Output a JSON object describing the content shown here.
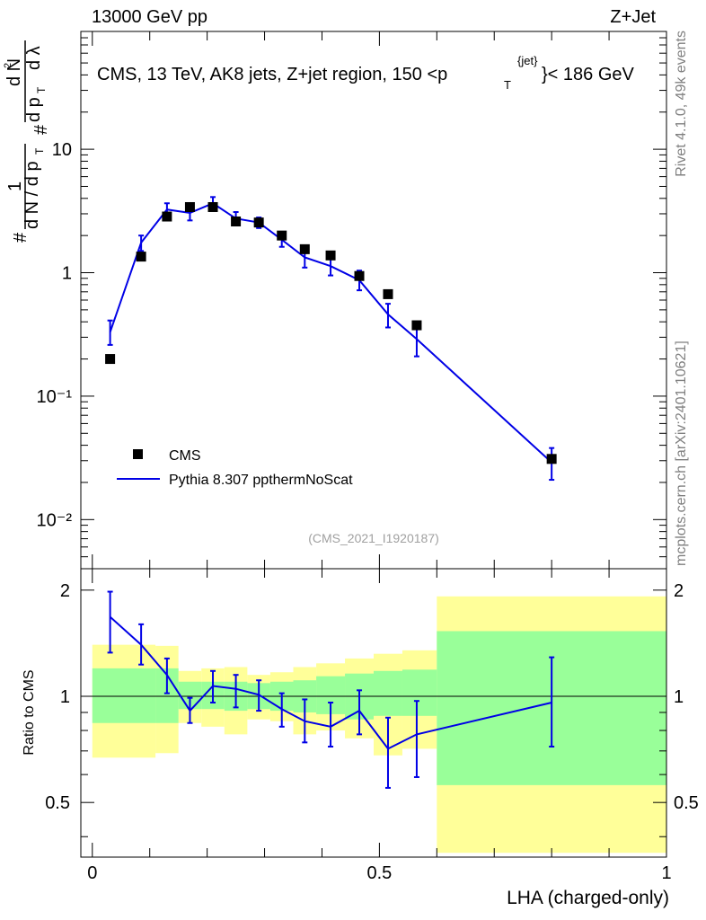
{
  "header": {
    "left": "13000 GeV pp",
    "right": "Z+Jet"
  },
  "side": {
    "rivet": "Rivet 4.1.0,  49k events",
    "mcplots": "mcplots.cern.ch [arXiv:2401.10621]"
  },
  "colors": {
    "cms": "#000000",
    "mc": "#0000e6",
    "band_inner": "#99ff99",
    "band_outer": "#ffff99"
  },
  "chart_data": [
    {
      "type": "scatter",
      "title": "CMS, 13 TeV, AK8 jets, Z+jet region, 150 <p_T^{jet}< 186 GeV",
      "title_text": "CMS, 13 TeV, AK8 jets, Z+jet region, 150 <p",
      "title_sub": "T",
      "title_sup": "{jet}",
      "title_suffix": "}< 186 GeV",
      "analysis_id": "(CMS_2021_I1920187)",
      "ylabel": "1/N dN/dp_T d^2N/dp_T dλ",
      "yscale": "log",
      "ylim": [
        0.004,
        90
      ],
      "xlim": [
        -0.02,
        1.0
      ],
      "ytick_labels": [
        "10⁻²",
        "10⁻¹",
        "1",
        "10"
      ],
      "legend": [
        "CMS",
        "Pythia 8.307 ppthermNoScat"
      ],
      "series": [
        {
          "name": "CMS",
          "x": [
            0.031,
            0.085,
            0.13,
            0.17,
            0.21,
            0.25,
            0.29,
            0.33,
            0.37,
            0.415,
            0.465,
            0.515,
            0.565,
            0.8
          ],
          "y": [
            0.2,
            1.35,
            2.85,
            3.4,
            3.4,
            2.6,
            2.55,
            2.0,
            1.55,
            1.38,
            0.94,
            0.67,
            0.375,
            0.031
          ]
        },
        {
          "name": "Pythia 8.307 ppthermNoScat",
          "x": [
            0.031,
            0.085,
            0.13,
            0.17,
            0.21,
            0.25,
            0.29,
            0.33,
            0.37,
            0.415,
            0.465,
            0.515,
            0.565,
            0.8
          ],
          "y": [
            0.33,
            1.75,
            3.25,
            3.05,
            3.65,
            2.75,
            2.55,
            1.85,
            1.33,
            1.13,
            0.87,
            0.46,
            0.29,
            0.029
          ],
          "err_lo": [
            0.26,
            1.5,
            2.8,
            2.65,
            3.2,
            2.45,
            2.3,
            1.62,
            1.1,
            0.95,
            0.72,
            0.36,
            0.21,
            0.021
          ],
          "err_hi": [
            0.41,
            2.0,
            3.65,
            3.5,
            4.1,
            3.1,
            2.8,
            2.1,
            1.55,
            1.35,
            1.04,
            0.56,
            0.38,
            0.038
          ]
        }
      ]
    },
    {
      "type": "line",
      "ylabel": "Ratio to CMS",
      "xlabel": "LHA (charged-only)",
      "ylim": [
        0.35,
        2.3
      ],
      "xlim": [
        -0.02,
        1.0
      ],
      "ytick_labels": [
        "0.5",
        "1",
        "2"
      ],
      "xtick_labels": [
        "0",
        "0.5",
        "1"
      ],
      "reference": 1.0,
      "bands": [
        {
          "x0": 0.0,
          "x1": 0.11,
          "inner": [
            0.84,
            1.2
          ],
          "outer": [
            0.67,
            1.4
          ]
        },
        {
          "x0": 0.11,
          "x1": 0.15,
          "inner": [
            0.84,
            1.2
          ],
          "outer": [
            0.69,
            1.39
          ]
        },
        {
          "x0": 0.15,
          "x1": 0.19,
          "inner": [
            0.92,
            1.1
          ],
          "outer": [
            0.84,
            1.18
          ]
        },
        {
          "x0": 0.19,
          "x1": 0.23,
          "inner": [
            0.92,
            1.1
          ],
          "outer": [
            0.82,
            1.2
          ]
        },
        {
          "x0": 0.23,
          "x1": 0.27,
          "inner": [
            0.91,
            1.1
          ],
          "outer": [
            0.78,
            1.21
          ]
        },
        {
          "x0": 0.27,
          "x1": 0.31,
          "inner": [
            0.92,
            1.09
          ],
          "outer": [
            0.86,
            1.15
          ]
        },
        {
          "x0": 0.31,
          "x1": 0.35,
          "inner": [
            0.91,
            1.1
          ],
          "outer": [
            0.85,
            1.17
          ]
        },
        {
          "x0": 0.35,
          "x1": 0.39,
          "inner": [
            0.9,
            1.11
          ],
          "outer": [
            0.78,
            1.21
          ]
        },
        {
          "x0": 0.39,
          "x1": 0.44,
          "inner": [
            0.89,
            1.14
          ],
          "outer": [
            0.8,
            1.24
          ]
        },
        {
          "x0": 0.44,
          "x1": 0.49,
          "inner": [
            0.86,
            1.16
          ],
          "outer": [
            0.76,
            1.28
          ]
        },
        {
          "x0": 0.49,
          "x1": 0.54,
          "inner": [
            0.88,
            1.18
          ],
          "outer": [
            0.68,
            1.32
          ]
        },
        {
          "x0": 0.54,
          "x1": 0.6,
          "inner": [
            0.88,
            1.19
          ],
          "outer": [
            0.71,
            1.35
          ]
        },
        {
          "x0": 0.6,
          "x1": 1.0,
          "inner": [
            0.56,
            1.53
          ],
          "outer": [
            0.36,
            1.92
          ]
        }
      ],
      "series": [
        {
          "name": "Pythia 8.307 ppthermNoScat / CMS",
          "x": [
            0.031,
            0.085,
            0.13,
            0.17,
            0.21,
            0.25,
            0.29,
            0.33,
            0.37,
            0.415,
            0.465,
            0.515,
            0.565,
            0.8
          ],
          "y": [
            1.68,
            1.4,
            1.15,
            0.91,
            1.07,
            1.05,
            1.01,
            0.92,
            0.85,
            0.82,
            0.91,
            0.71,
            0.78,
            0.96
          ],
          "err_lo": [
            1.33,
            1.23,
            1.02,
            0.84,
            0.96,
            0.93,
            0.91,
            0.82,
            0.74,
            0.72,
            0.78,
            0.55,
            0.59,
            0.72
          ],
          "err_hi": [
            1.98,
            1.6,
            1.28,
            0.99,
            1.18,
            1.15,
            1.11,
            1.02,
            0.98,
            0.96,
            1.04,
            0.87,
            0.97,
            1.29
          ]
        }
      ]
    }
  ]
}
